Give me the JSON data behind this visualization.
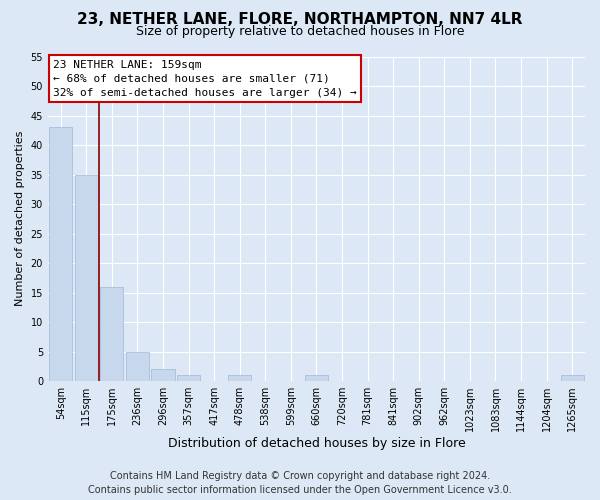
{
  "title": "23, NETHER LANE, FLORE, NORTHAMPTON, NN7 4LR",
  "subtitle": "Size of property relative to detached houses in Flore",
  "xlabel": "Distribution of detached houses by size in Flore",
  "ylabel": "Number of detached properties",
  "bar_labels": [
    "54sqm",
    "115sqm",
    "175sqm",
    "236sqm",
    "296sqm",
    "357sqm",
    "417sqm",
    "478sqm",
    "538sqm",
    "599sqm",
    "660sqm",
    "720sqm",
    "781sqm",
    "841sqm",
    "902sqm",
    "962sqm",
    "1023sqm",
    "1083sqm",
    "1144sqm",
    "1204sqm",
    "1265sqm"
  ],
  "bar_values": [
    43,
    35,
    16,
    5,
    2,
    1,
    0,
    1,
    0,
    0,
    1,
    0,
    0,
    0,
    0,
    0,
    0,
    0,
    0,
    0,
    1
  ],
  "bar_color": "#c8d8ec",
  "bar_edge_color": "#a0b8d8",
  "annotation_box_text_line1": "23 NETHER LANE: 159sqm",
  "annotation_box_text_line2": "← 68% of detached houses are smaller (71)",
  "annotation_box_text_line3": "32% of semi-detached houses are larger (34) →",
  "annotation_box_color": "#ffffff",
  "annotation_box_edge_color": "#cc0000",
  "vline_color": "#8b0000",
  "vline_x": 1.5,
  "ylim": [
    0,
    55
  ],
  "yticks": [
    0,
    5,
    10,
    15,
    20,
    25,
    30,
    35,
    40,
    45,
    50,
    55
  ],
  "footer_line1": "Contains HM Land Registry data © Crown copyright and database right 2024.",
  "footer_line2": "Contains public sector information licensed under the Open Government Licence v3.0.",
  "bg_color": "#dce8f5",
  "plot_bg_color": "#dce8f5",
  "grid_color": "#ffffff",
  "title_fontsize": 11,
  "subtitle_fontsize": 9,
  "xlabel_fontsize": 9,
  "ylabel_fontsize": 8,
  "tick_fontsize": 7,
  "annot_fontsize": 8,
  "footer_fontsize": 7
}
